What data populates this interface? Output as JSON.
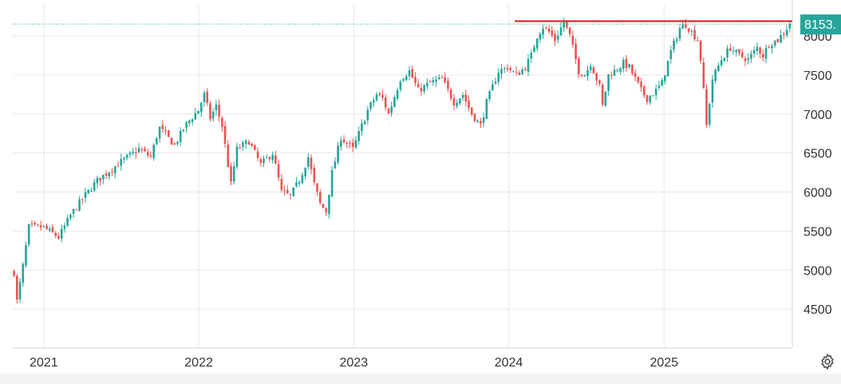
{
  "chart_data": {
    "type": "candlestick",
    "title": "",
    "xlabel": "",
    "ylabel": "",
    "x_range": [
      "2020-10-20",
      "2025-10-30"
    ],
    "ylim": [
      4000,
      8400
    ],
    "y_ticks": [
      4500,
      5000,
      5500,
      6000,
      6500,
      7000,
      7500,
      8000
    ],
    "y_tick_labels": [
      "4500",
      "5000",
      "5500",
      "6000",
      "6500",
      "7000",
      "7500",
      "8000"
    ],
    "x_ticks": [
      "2021-01-01",
      "2022-01-01",
      "2023-01-01",
      "2024-01-01",
      "2025-01-01"
    ],
    "x_tick_labels": [
      "2021",
      "2022",
      "2023",
      "2024",
      "2025"
    ],
    "grid": true,
    "last_price": 8153,
    "last_price_label": "8153.",
    "resistance_level": 8190,
    "resistance_start": "2024-01-15",
    "colors": {
      "up": "#26a69a",
      "down": "#ef5350",
      "resistance": "#d32f2f",
      "price_line": "#26a69a",
      "grid": "#e8e8e8",
      "axis_text": "#333333"
    },
    "price_path": [
      [
        "2020-10-23",
        4970
      ],
      [
        "2020-10-30",
        4600
      ],
      [
        "2020-11-13",
        5050
      ],
      [
        "2020-11-27",
        5550
      ],
      [
        "2020-12-31",
        5550
      ],
      [
        "2021-02-05",
        5420
      ],
      [
        "2021-03-05",
        5700
      ],
      [
        "2021-03-31",
        5900
      ],
      [
        "2021-05-07",
        6150
      ],
      [
        "2021-06-30",
        6380
      ],
      [
        "2021-08-13",
        6550
      ],
      [
        "2021-09-10",
        6450
      ],
      [
        "2021-09-30",
        6830
      ],
      [
        "2021-11-05",
        6600
      ],
      [
        "2021-11-30",
        6850
      ],
      [
        "2021-12-31",
        7050
      ],
      [
        "2022-01-14",
        7250
      ],
      [
        "2022-01-28",
        6950
      ],
      [
        "2022-02-11",
        7100
      ],
      [
        "2022-02-25",
        6850
      ],
      [
        "2022-03-18",
        6100
      ],
      [
        "2022-04-01",
        6550
      ],
      [
        "2022-04-29",
        6650
      ],
      [
        "2022-05-27",
        6350
      ],
      [
        "2022-06-24",
        6500
      ],
      [
        "2022-07-15",
        6000
      ],
      [
        "2022-08-05",
        5950
      ],
      [
        "2022-08-26",
        6150
      ],
      [
        "2022-09-16",
        6450
      ],
      [
        "2022-09-30",
        6100
      ],
      [
        "2022-10-14",
        5850
      ],
      [
        "2022-10-28",
        5750
      ],
      [
        "2022-11-11",
        6250
      ],
      [
        "2022-12-02",
        6700
      ],
      [
        "2022-12-30",
        6550
      ],
      [
        "2023-01-13",
        6750
      ],
      [
        "2023-02-03",
        7050
      ],
      [
        "2023-02-24",
        7250
      ],
      [
        "2023-03-10",
        7200
      ],
      [
        "2023-03-24",
        7000
      ],
      [
        "2023-04-21",
        7450
      ],
      [
        "2023-05-12",
        7550
      ],
      [
        "2023-06-02",
        7300
      ],
      [
        "2023-06-30",
        7400
      ],
      [
        "2023-07-28",
        7450
      ],
      [
        "2023-08-25",
        7150
      ],
      [
        "2023-09-15",
        7250
      ],
      [
        "2023-10-06",
        7000
      ],
      [
        "2023-10-27",
        6850
      ],
      [
        "2023-11-10",
        7150
      ],
      [
        "2023-11-24",
        7350
      ],
      [
        "2023-12-08",
        7550
      ],
      [
        "2023-12-29",
        7600
      ],
      [
        "2024-01-19",
        7500
      ],
      [
        "2024-02-09",
        7600
      ],
      [
        "2024-02-23",
        7750
      ],
      [
        "2024-03-08",
        8000
      ],
      [
        "2024-03-22",
        8120
      ],
      [
        "2024-04-05",
        8050
      ],
      [
        "2024-04-19",
        7950
      ],
      [
        "2024-05-10",
        8180
      ],
      [
        "2024-05-24",
        8000
      ],
      [
        "2024-06-14",
        7550
      ],
      [
        "2024-06-28",
        7500
      ],
      [
        "2024-07-12",
        7650
      ],
      [
        "2024-08-02",
        7350
      ],
      [
        "2024-08-09",
        7100
      ],
      [
        "2024-08-23",
        7500
      ],
      [
        "2024-09-06",
        7550
      ],
      [
        "2024-09-27",
        7650
      ],
      [
        "2024-10-11",
        7600
      ],
      [
        "2024-10-25",
        7450
      ],
      [
        "2024-11-08",
        7300
      ],
      [
        "2024-11-22",
        7200
      ],
      [
        "2024-12-13",
        7300
      ],
      [
        "2024-12-27",
        7400
      ],
      [
        "2025-01-17",
        7800
      ],
      [
        "2025-02-07",
        8100
      ],
      [
        "2025-02-21",
        8150
      ],
      [
        "2025-03-07",
        8050
      ],
      [
        "2025-03-21",
        7950
      ],
      [
        "2025-03-28",
        7700
      ],
      [
        "2025-04-04",
        7300
      ],
      [
        "2025-04-11",
        6850
      ],
      [
        "2025-04-25",
        7450
      ],
      [
        "2025-05-16",
        7700
      ],
      [
        "2025-06-06",
        7850
      ],
      [
        "2025-06-27",
        7750
      ],
      [
        "2025-07-18",
        7700
      ],
      [
        "2025-08-08",
        7850
      ],
      [
        "2025-08-22",
        7750
      ],
      [
        "2025-09-05",
        7900
      ],
      [
        "2025-09-26",
        7950
      ],
      [
        "2025-10-10",
        8050
      ],
      [
        "2025-10-24",
        8153
      ]
    ]
  },
  "ui": {
    "gear_icon": "gear-icon"
  }
}
